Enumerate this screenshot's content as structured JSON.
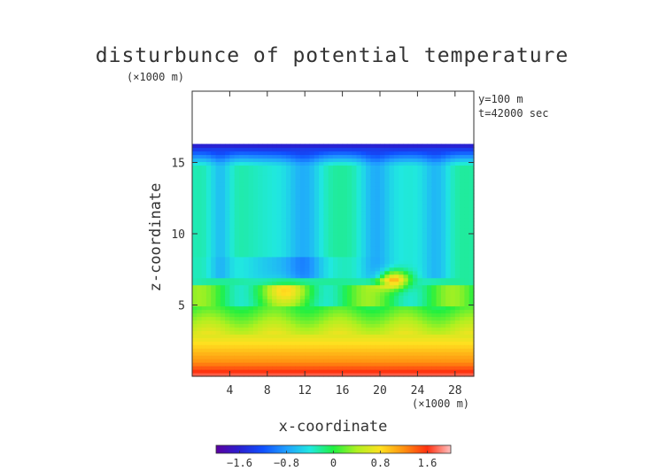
{
  "chart_data": {
    "type": "heatmap",
    "title": "disturbunce of potential temperature",
    "y_unit": "(×1000 m)",
    "x_unit": "(×1000 m)",
    "xlabel": "x-coordinate",
    "ylabel": "z-coordinate",
    "annotations": [
      "y=100 m",
      "t=42000 sec"
    ],
    "xlim": [
      0,
      30
    ],
    "ylim": [
      0,
      20
    ],
    "x_ticks": [
      4,
      8,
      12,
      16,
      20,
      24,
      28
    ],
    "x_tick_labels": [
      "4",
      "8",
      "12",
      "16",
      "20",
      "24",
      "28"
    ],
    "y_ticks": [
      5,
      10,
      15
    ],
    "y_tick_labels": [
      "5",
      "10",
      "15"
    ],
    "colorbar": {
      "range": [
        -2,
        2
      ],
      "ticks": [
        -1.6,
        -0.8,
        0,
        0.8,
        1.6
      ],
      "tick_labels": [
        "−1.6",
        "−0.8",
        "0",
        "0.8",
        "1.6"
      ],
      "colormap": "rainbow"
    },
    "data_top_z": 16.3,
    "field_description_values": {
      "surface_layer_z0_1": 1.8,
      "layer_z1_3": 1.0,
      "layer_z3_5": 0.5,
      "layer_z5_15": -0.3,
      "plumes_min": -0.8,
      "warm_blob": {
        "x": 21.5,
        "z": 6.8,
        "value": 1.4
      },
      "cold_lid_top": -1.7
    }
  }
}
